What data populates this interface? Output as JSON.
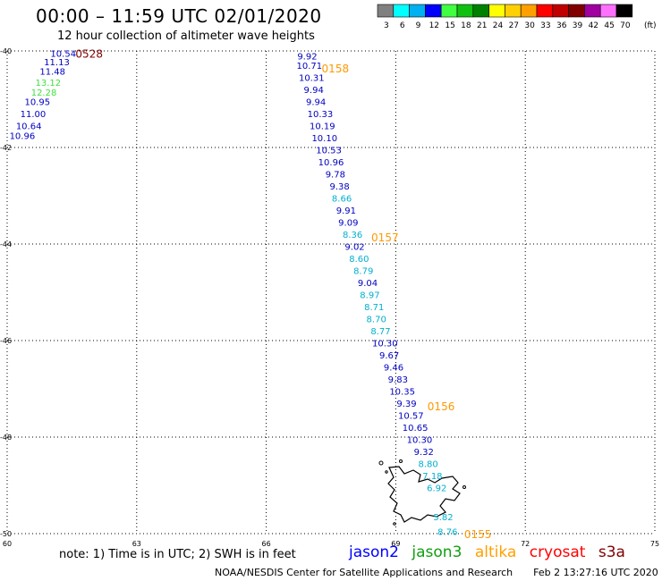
{
  "header": {
    "title": "00:00 – 11:59 UTC 02/01/2020",
    "subtitle": "12 hour collection of altimeter wave heights"
  },
  "colorbar": {
    "labels": [
      "3",
      "6",
      "9",
      "12",
      "15",
      "18",
      "21",
      "24",
      "27",
      "30",
      "33",
      "36",
      "39",
      "42",
      "45",
      "70"
    ],
    "unit": "(ft)",
    "colors": [
      "#808080",
      "#00ffff",
      "#00b0f0",
      "#0000ff",
      "#40ff40",
      "#10c010",
      "#008000",
      "#ffff00",
      "#ffd000",
      "#ffa000",
      "#ff0000",
      "#c00000",
      "#800000",
      "#a000a0",
      "#ff70ff",
      "#000000"
    ]
  },
  "note": "note: 1) Time is in UTC; 2) SWH is in feet",
  "legend": [
    {
      "name": "jason2",
      "color": "#0000ff"
    },
    {
      "name": "jason3",
      "color": "#10a010"
    },
    {
      "name": "altika",
      "color": "#ffa000"
    },
    {
      "name": "cryosat",
      "color": "#ff0000"
    },
    {
      "name": "s3a",
      "color": "#800000"
    }
  ],
  "footer": {
    "credit": "NOAA/NESDIS Center for Satellite Applications and Research",
    "timestamp": "Feb  2 13:27:16 UTC 2020"
  },
  "chart_data": {
    "type": "scatter",
    "title": "00:00 – 11:59 UTC 02/01/2020",
    "subtitle": "12 hour collection of altimeter wave heights",
    "xlabel": "",
    "ylabel": "",
    "xlim": [
      60,
      75
    ],
    "ylim": [
      -50,
      -40
    ],
    "x_ticks": [
      "60",
      "63",
      "66",
      "69",
      "72",
      "75"
    ],
    "y_ticks": [
      "-40",
      "-42",
      "-44",
      "-46",
      "-48",
      "-50"
    ],
    "grid": true,
    "value_colors": {
      "cyan": "#00b0d0",
      "blue": "#0000c0",
      "green": "#40e040"
    },
    "time_color": "#ff9900",
    "s3a_time_color": "#800000",
    "tracks": [
      {
        "name": "s3a",
        "time_label": "0528",
        "points": [
          {
            "lon": 61.3,
            "lat": -40.05,
            "value": "10.54",
            "color": "blue"
          },
          {
            "lon": 61.15,
            "lat": -40.22,
            "value": "11.13",
            "color": "blue"
          },
          {
            "lon": 61.05,
            "lat": -40.42,
            "value": "11.48",
            "color": "blue"
          },
          {
            "lon": 60.95,
            "lat": -40.65,
            "value": "13.12",
            "color": "green"
          },
          {
            "lon": 60.85,
            "lat": -40.85,
            "value": "12.28",
            "color": "green"
          },
          {
            "lon": 60.7,
            "lat": -41.05,
            "value": "10.95",
            "color": "blue"
          },
          {
            "lon": 60.6,
            "lat": -41.3,
            "value": "11.00",
            "color": "blue"
          },
          {
            "lon": 60.5,
            "lat": -41.55,
            "value": "10.64",
            "color": "blue"
          },
          {
            "lon": 60.35,
            "lat": -41.75,
            "value": "10.96",
            "color": "blue"
          }
        ]
      },
      {
        "name": "altika",
        "time_label": "0158",
        "points": [
          {
            "lon": 66.95,
            "lat": -40.1,
            "value": "9.92",
            "color": "blue"
          },
          {
            "lon": 67.0,
            "lat": -40.3,
            "value": "10.71",
            "color": "blue"
          },
          {
            "lon": 67.05,
            "lat": -40.55,
            "value": "10.31",
            "color": "blue"
          },
          {
            "lon": 67.1,
            "lat": -40.8,
            "value": "9.94",
            "color": "blue"
          },
          {
            "lon": 67.15,
            "lat": -41.05,
            "value": "9.94",
            "color": "blue"
          },
          {
            "lon": 67.25,
            "lat": -41.3,
            "value": "10.33",
            "color": "blue"
          },
          {
            "lon": 67.3,
            "lat": -41.55,
            "value": "10.19",
            "color": "blue"
          },
          {
            "lon": 67.35,
            "lat": -41.8,
            "value": "10.10",
            "color": "blue"
          },
          {
            "lon": 67.45,
            "lat": -42.05,
            "value": "10.53",
            "color": "blue"
          },
          {
            "lon": 67.5,
            "lat": -42.3,
            "value": "10.96",
            "color": "blue"
          },
          {
            "lon": 67.6,
            "lat": -42.55,
            "value": "9.78",
            "color": "blue"
          },
          {
            "lon": 67.7,
            "lat": -42.8,
            "value": "9.38",
            "color": "blue"
          },
          {
            "lon": 67.75,
            "lat": -43.05,
            "value": "8.66",
            "color": "cyan"
          },
          {
            "lon": 67.85,
            "lat": -43.3,
            "value": "9.91",
            "color": "blue"
          },
          {
            "lon": 67.9,
            "lat": -43.55,
            "value": "9.09",
            "color": "blue"
          },
          {
            "lon": 68.0,
            "lat": -43.8,
            "value": "8.36",
            "color": "cyan"
          },
          {
            "lon": 68.05,
            "lat": -44.05,
            "value": "9.02",
            "color": "blue"
          },
          {
            "lon": 68.15,
            "lat": -44.3,
            "value": "8.60",
            "color": "cyan"
          },
          {
            "lon": 68.25,
            "lat": -44.55,
            "value": "8.79",
            "color": "cyan"
          },
          {
            "lon": 68.35,
            "lat": -44.8,
            "value": "9.04",
            "color": "blue"
          },
          {
            "lon": 68.4,
            "lat": -45.05,
            "value": "8.97",
            "color": "cyan"
          },
          {
            "lon": 68.5,
            "lat": -45.3,
            "value": "8.71",
            "color": "cyan"
          },
          {
            "lon": 68.55,
            "lat": -45.55,
            "value": "8.70",
            "color": "cyan"
          },
          {
            "lon": 68.65,
            "lat": -45.8,
            "value": "8.77",
            "color": "cyan"
          },
          {
            "lon": 68.75,
            "lat": -46.05,
            "value": "10.30",
            "color": "blue"
          },
          {
            "lon": 68.85,
            "lat": -46.3,
            "value": "9.67",
            "color": "blue"
          },
          {
            "lon": 68.95,
            "lat": -46.55,
            "value": "9.46",
            "color": "blue"
          },
          {
            "lon": 69.05,
            "lat": -46.8,
            "value": "9.83",
            "color": "blue"
          },
          {
            "lon": 69.15,
            "lat": -47.05,
            "value": "10.35",
            "color": "blue"
          },
          {
            "lon": 69.25,
            "lat": -47.3,
            "value": "9.39",
            "color": "blue"
          },
          {
            "lon": 69.35,
            "lat": -47.55,
            "value": "10.57",
            "color": "blue"
          },
          {
            "lon": 69.45,
            "lat": -47.8,
            "value": "10.65",
            "color": "blue"
          },
          {
            "lon": 69.55,
            "lat": -48.05,
            "value": "10.30",
            "color": "blue"
          },
          {
            "lon": 69.65,
            "lat": -48.3,
            "value": "9.32",
            "color": "blue"
          },
          {
            "lon": 69.75,
            "lat": -48.55,
            "value": "8.80",
            "color": "cyan"
          },
          {
            "lon": 69.85,
            "lat": -48.8,
            "value": "7.18",
            "color": "cyan"
          },
          {
            "lon": 69.95,
            "lat": -49.05,
            "value": "6.92",
            "color": "cyan"
          },
          {
            "lon": 70.1,
            "lat": -49.65,
            "value": "5.82",
            "color": "cyan"
          },
          {
            "lon": 70.2,
            "lat": -49.95,
            "value": "8.76",
            "color": "cyan"
          }
        ],
        "time_labels": [
          {
            "text": "0158",
            "lon": 67.6,
            "lat": -40.35
          },
          {
            "text": "0157",
            "lon": 68.75,
            "lat": -43.85
          },
          {
            "text": "0156",
            "lon": 70.05,
            "lat": -47.35
          },
          {
            "text": "0155",
            "lon": 70.9,
            "lat": -50.0
          }
        ]
      }
    ],
    "s3a_label": {
      "text": "0528",
      "lon": 61.9,
      "lat": -40.05
    }
  }
}
